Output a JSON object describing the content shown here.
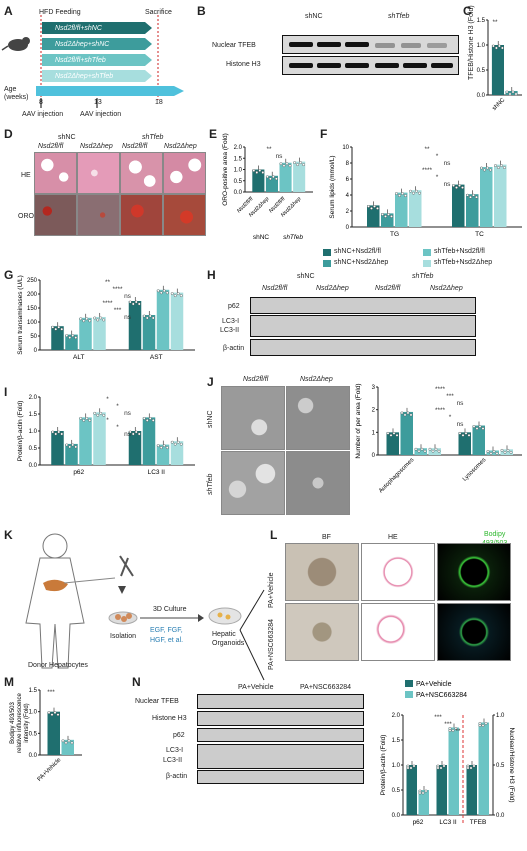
{
  "panels": {
    "A": {
      "letter": "A",
      "hfd": "HFD Feeding",
      "sacrifice": "Sacrifice",
      "age_label": "Age\n(weeks)",
      "ticks": [
        "0",
        "8",
        "13",
        "18"
      ],
      "groups": [
        "Nsd2fl/fl+shNC",
        "Nsd2Δhep+shNC",
        "Nsd2fl/fl+shTfeb",
        "Nsd2Δhep+shTfeb"
      ],
      "aav1": "AAV injection",
      "aav2": "AAV injection"
    },
    "B": {
      "letter": "B",
      "cols": [
        "shNC",
        "shTfeb"
      ],
      "rows": [
        "Nuclear TFEB",
        "Histone H3"
      ]
    },
    "C": {
      "letter": "C",
      "ylabel": "TFEB/Histone H3 (Fold)",
      "cats": [
        "shNC",
        "shTfeb"
      ],
      "values": [
        1.0,
        0.08
      ],
      "sig": "**",
      "yticks": [
        "0.0",
        "0.5",
        "1.0",
        "1.5"
      ]
    },
    "D": {
      "letter": "D",
      "cols": [
        "shNC",
        "shTfeb"
      ],
      "sub": [
        "Nsd2fl/fl",
        "Nsd2Δhep",
        "Nsd2fl/fl",
        "Nsd2Δhep"
      ],
      "rows": [
        "HE",
        "ORO"
      ]
    },
    "E": {
      "letter": "E",
      "ylabel": "ORO-positive area (Fold)",
      "yticks": [
        "0.0",
        "0.5",
        "1.0",
        "1.5",
        "2.0"
      ],
      "sig": [
        "**",
        "ns"
      ],
      "cats": [
        "Nsd2fl/fl",
        "Nsd2Δhep",
        "Nsd2fl/fl",
        "Nsd2Δhep"
      ],
      "groups": [
        "shNC",
        "shTfeb"
      ]
    },
    "F": {
      "letter": "F",
      "ylabel": "Serum lipids (mmol/L)",
      "yticks": [
        "0",
        "2",
        "4",
        "6",
        "8",
        "10"
      ],
      "cats": [
        "TG",
        "TC"
      ],
      "sig": [
        "**",
        "*",
        "ns",
        "****",
        "*",
        "ns"
      ],
      "legend": [
        "shNC+Nsd2fl/fl",
        "shNC+Nsd2Δhep",
        "shTfeb+Nsd2fl/fl",
        "shTfeb+Nsd2Δhep"
      ]
    },
    "G": {
      "letter": "G",
      "ylabel": "Serum transaminases (U/L)",
      "yticks": [
        "0",
        "50",
        "100",
        "150",
        "200",
        "250"
      ],
      "cats": [
        "ALT",
        "AST"
      ],
      "sig": [
        "**",
        "****",
        "ns",
        "****",
        "***",
        "ns"
      ]
    },
    "H": {
      "letter": "H",
      "cols": [
        "shNC",
        "shTfeb"
      ],
      "sub": [
        "Nsd2fl/fl",
        "Nsd2Δhep",
        "Nsd2fl/fl",
        "Nsd2Δhep"
      ],
      "rows": [
        "p62",
        "LC3-I",
        "LC3-II",
        "β-actin"
      ]
    },
    "I": {
      "letter": "I",
      "ylabel": "Protein/β-actin (Fold)",
      "yticks": [
        "0.0",
        "0.5",
        "1.0",
        "1.5",
        "2.0"
      ],
      "cats": [
        "p62",
        "LC3 II"
      ],
      "sig": [
        "*",
        "*",
        "ns",
        "*",
        "*",
        "ns"
      ]
    },
    "J": {
      "letter": "J",
      "cols": [
        "Nsd2fl/fl",
        "Nsd2Δhep"
      ],
      "rows": [
        "shNC",
        "shTfeb"
      ],
      "ylabel": "Number of per area (Fold)",
      "yticks": [
        "0",
        "1",
        "2",
        "3"
      ],
      "cats": [
        "Autophagosomes",
        "Lysosomes"
      ],
      "sig": [
        "****",
        "***",
        "ns",
        "****",
        "*",
        "ns"
      ]
    },
    "K": {
      "letter": "K",
      "isolation": "Isolation",
      "culture": "3D Culture",
      "factors": "EGF, FGF,\nHGF, et al.",
      "organoids": "Hepatic\nOrganoids",
      "donor": "Donor Hepatocytes"
    },
    "L": {
      "letter": "L",
      "cols": [
        "BF",
        "HE",
        "Bodipy\n493/503"
      ],
      "rows": [
        "PA+Vehicle",
        "PA+NSC663284"
      ]
    },
    "M": {
      "letter": "M",
      "ylabel": "Bodipy 493/503 relative influorescence intensity (Fold)",
      "yticks": [
        "0.0",
        "0.5",
        "1.0",
        "1.5"
      ],
      "cats": [
        "PA+Vehicle",
        "PA+NSC663284"
      ],
      "values": [
        1.0,
        0.35
      ],
      "sig": "***"
    },
    "N": {
      "letter": "N",
      "cols": [
        "PA+Vehicle",
        "PA+NSC663284"
      ],
      "rows": [
        "Nuclear TFEB",
        "Histone H3",
        "p62",
        "LC3-I",
        "LC3-II",
        "β-actin"
      ],
      "legend": [
        "PA+Vehicle",
        "PA+NSC663284"
      ],
      "ylabel_left": "Protein/β-actin (Fold)",
      "ylabel_right": "Nuclear/Histone H3 (Fold)",
      "yticks": [
        "0.0",
        "0.5",
        "1.0",
        "1.5",
        "2.0"
      ],
      "yticks_right": [
        "0.0",
        "0.5",
        "1.0"
      ],
      "cats": [
        "p62",
        "LC3 II",
        "TFEB"
      ],
      "sig": [
        "***",
        "***",
        "**"
      ]
    }
  },
  "colors": {
    "c1": "#1f6f6f",
    "c2": "#3d9c9c",
    "c3": "#6cc4c4",
    "c4": "#a7dede",
    "sig": "#333"
  },
  "chart_data": [
    {
      "type": "bar",
      "panel": "C",
      "categories": [
        "shNC",
        "shTfeb"
      ],
      "values": [
        1.0,
        0.08
      ],
      "ylim": [
        0,
        1.5
      ]
    },
    {
      "type": "bar",
      "panel": "E",
      "categories": [
        "shNC Nsd2fl/fl",
        "shNC Nsd2Δhep",
        "shTfeb Nsd2fl/fl",
        "shTfeb Nsd2Δhep"
      ],
      "values": [
        1.0,
        0.72,
        1.3,
        1.35
      ],
      "ylim": [
        0,
        2.0
      ]
    },
    {
      "type": "bar",
      "panel": "F",
      "categories": [
        "TG",
        "TC"
      ],
      "series": [
        {
          "name": "shNC+Nsd2fl/fl",
          "values": [
            2.7,
            5.3
          ]
        },
        {
          "name": "shNC+Nsd2Δhep",
          "values": [
            1.7,
            4.1
          ]
        },
        {
          "name": "shTfeb+Nsd2fl/fl",
          "values": [
            4.3,
            7.5
          ]
        },
        {
          "name": "shTfeb+Nsd2Δhep",
          "values": [
            4.6,
            7.8
          ]
        }
      ],
      "ylim": [
        0,
        10
      ]
    },
    {
      "type": "bar",
      "panel": "G",
      "categories": [
        "ALT",
        "AST"
      ],
      "series": [
        {
          "name": "shNC+Nsd2fl/fl",
          "values": [
            85,
            175
          ]
        },
        {
          "name": "shNC+Nsd2Δhep",
          "values": [
            55,
            125
          ]
        },
        {
          "name": "shTfeb+Nsd2fl/fl",
          "values": [
            115,
            215
          ]
        },
        {
          "name": "shTfeb+Nsd2Δhep",
          "values": [
            118,
            205
          ]
        }
      ],
      "ylim": [
        0,
        250
      ]
    },
    {
      "type": "bar",
      "panel": "I",
      "categories": [
        "p62",
        "LC3 II"
      ],
      "series": [
        {
          "name": "shNC+Nsd2fl/fl",
          "values": [
            1.0,
            1.0
          ]
        },
        {
          "name": "shNC+Nsd2Δhep",
          "values": [
            0.62,
            1.4
          ]
        },
        {
          "name": "shTfeb+Nsd2fl/fl",
          "values": [
            1.4,
            0.6
          ]
        },
        {
          "name": "shTfeb+Nsd2Δhep",
          "values": [
            1.55,
            0.7
          ]
        }
      ],
      "ylim": [
        0,
        2.0
      ]
    },
    {
      "type": "bar",
      "panel": "J",
      "categories": [
        "Autophagosomes",
        "Lysosomes"
      ],
      "series": [
        {
          "name": "shNC+Nsd2fl/fl",
          "values": [
            1.0,
            1.0
          ]
        },
        {
          "name": "shNC+Nsd2Δhep",
          "values": [
            1.9,
            1.3
          ]
        },
        {
          "name": "shTfeb+Nsd2fl/fl",
          "values": [
            0.3,
            0.2
          ]
        },
        {
          "name": "shTfeb+Nsd2Δhep",
          "values": [
            0.3,
            0.25
          ]
        }
      ],
      "ylim": [
        0,
        3
      ]
    },
    {
      "type": "bar",
      "panel": "M",
      "categories": [
        "PA+Vehicle",
        "PA+NSC663284"
      ],
      "values": [
        1.0,
        0.35
      ],
      "ylim": [
        0,
        1.5
      ]
    },
    {
      "type": "bar",
      "panel": "N",
      "categories": [
        "p62",
        "LC3 II",
        "TFEB"
      ],
      "series": [
        {
          "name": "PA+Vehicle",
          "values": [
            1.0,
            1.0,
            1.0
          ]
        },
        {
          "name": "PA+NSC663284",
          "values": [
            0.5,
            1.75,
            1.85
          ]
        }
      ],
      "ylim": [
        0,
        2.0
      ]
    }
  ]
}
